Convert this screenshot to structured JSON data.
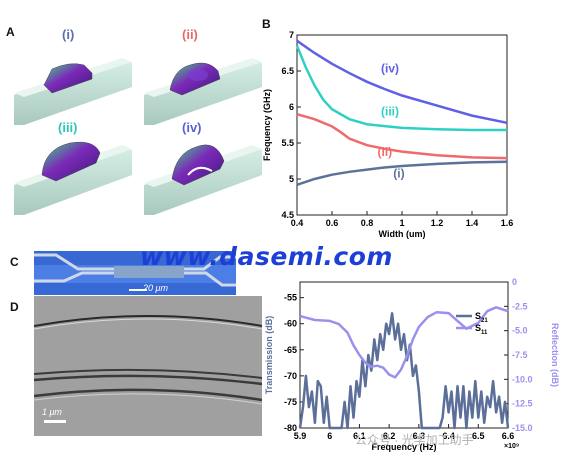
{
  "panels": {
    "A": "A",
    "B": "B",
    "C": "C",
    "D": "D"
  },
  "panel_a": {
    "labels": [
      "(i)",
      "(ii)",
      "(iii)",
      "(iv)"
    ],
    "label_colors": [
      "#5a6fb0",
      "#e86a6a",
      "#2fc7b9",
      "#5a5fd6"
    ]
  },
  "panel_c": {
    "scale_label": "20 μm"
  },
  "panel_d": {
    "scale_label": "1 μm"
  },
  "watermark": "www.dasemi.com",
  "wechat": "公众号 · 光学加工助手",
  "chart_data": [
    {
      "type": "line",
      "xlabel": "Width (um)",
      "ylabel": "Frequency (GHz)",
      "xlim": [
        0.4,
        1.6
      ],
      "ylim": [
        4.5,
        7
      ],
      "xticks": [
        "0.4",
        "0.6",
        "0.8",
        "1",
        "1.2",
        "1.4",
        "1.6"
      ],
      "yticks": [
        "4.5",
        "5",
        "5.5",
        "6",
        "6.5",
        "7"
      ],
      "grid": false,
      "series": [
        {
          "name": "(i)",
          "color": "#5c7299",
          "x": [
            0.4,
            0.5,
            0.6,
            0.7,
            0.8,
            0.9,
            1.0,
            1.2,
            1.4,
            1.6
          ],
          "y": [
            4.92,
            5.0,
            5.06,
            5.1,
            5.13,
            5.16,
            5.18,
            5.21,
            5.23,
            5.24
          ]
        },
        {
          "name": "(ii)",
          "color": "#ef6b6b",
          "x": [
            0.4,
            0.5,
            0.6,
            0.65,
            0.7,
            0.8,
            0.9,
            1.0,
            1.2,
            1.4,
            1.6
          ],
          "y": [
            5.9,
            5.83,
            5.73,
            5.65,
            5.56,
            5.47,
            5.42,
            5.38,
            5.33,
            5.3,
            5.29
          ]
        },
        {
          "name": "(iii)",
          "color": "#2fd0c4",
          "x": [
            0.4,
            0.45,
            0.5,
            0.55,
            0.6,
            0.7,
            0.8,
            1.0,
            1.2,
            1.4,
            1.6
          ],
          "y": [
            6.85,
            6.55,
            6.3,
            6.1,
            5.97,
            5.83,
            5.76,
            5.71,
            5.69,
            5.68,
            5.68
          ]
        },
        {
          "name": "(iv)",
          "color": "#5f60e6",
          "x": [
            0.4,
            0.5,
            0.6,
            0.7,
            0.8,
            0.9,
            1.0,
            1.2,
            1.4,
            1.6
          ],
          "y": [
            6.92,
            6.75,
            6.6,
            6.47,
            6.35,
            6.25,
            6.16,
            6.02,
            5.88,
            5.78
          ]
        }
      ]
    },
    {
      "type": "line",
      "xlabel": "Frequency (Hz)",
      "ylabel": "Transmission (dB)",
      "y2label": "Reflection (dB)",
      "xlim": [
        5.9,
        6.6
      ],
      "x_exponent": "×10⁹",
      "ylim": [
        -80,
        -52
      ],
      "y2lim": [
        -15,
        0
      ],
      "xticks": [
        "5.9",
        "6",
        "6.1",
        "6.2",
        "6.3",
        "6.4",
        "6.5",
        "6.6"
      ],
      "yticks": [
        "-80",
        "-75",
        "-70",
        "-65",
        "-60",
        "-55"
      ],
      "y2ticks": [
        "-15.0",
        "-12.5",
        "-10.0",
        "-7.5",
        "-5.0",
        "-2.5",
        "0"
      ],
      "legend": "right",
      "series": [
        {
          "name": "S21",
          "sub": "21",
          "axis": "left",
          "color": "#5b6f99",
          "x": [
            5.9,
            5.91,
            5.92,
            5.93,
            5.94,
            5.95,
            5.96,
            5.97,
            5.98,
            5.99,
            6.0,
            6.01,
            6.02,
            6.03,
            6.04,
            6.05,
            6.06,
            6.07,
            6.08,
            6.09,
            6.1,
            6.11,
            6.12,
            6.13,
            6.14,
            6.15,
            6.16,
            6.17,
            6.18,
            6.19,
            6.2,
            6.21,
            6.22,
            6.23,
            6.24,
            6.25,
            6.26,
            6.27,
            6.28,
            6.29,
            6.3,
            6.31,
            6.32,
            6.33,
            6.34,
            6.35,
            6.36,
            6.37,
            6.38,
            6.39,
            6.4,
            6.41,
            6.42,
            6.43,
            6.44,
            6.45,
            6.46,
            6.47,
            6.48,
            6.49,
            6.5,
            6.51,
            6.52,
            6.53,
            6.54,
            6.55,
            6.56,
            6.57,
            6.58,
            6.59,
            6.6
          ],
          "y": [
            -80,
            -76,
            -70,
            -76,
            -73,
            -79,
            -71,
            -72,
            -79,
            -74,
            -80,
            -80,
            -80,
            -80,
            -80,
            -75,
            -80,
            -72,
            -78,
            -71,
            -74,
            -67,
            -72,
            -66,
            -69,
            -63,
            -67,
            -62,
            -65,
            -60,
            -62,
            -58,
            -63,
            -60,
            -65,
            -62,
            -67,
            -64,
            -70,
            -68,
            -73,
            -80,
            -80,
            -80,
            -80,
            -80,
            -80,
            -80,
            -78,
            -72,
            -77,
            -73,
            -80,
            -72,
            -78,
            -72,
            -80,
            -73,
            -78,
            -71,
            -78,
            -73,
            -79,
            -74,
            -76,
            -71,
            -77,
            -74,
            -79,
            -75,
            -80
          ]
        },
        {
          "name": "S11",
          "sub": "11",
          "axis": "right",
          "color": "#9a91ef",
          "x": [
            5.9,
            5.95,
            6.0,
            6.03,
            6.06,
            6.08,
            6.1,
            6.12,
            6.14,
            6.16,
            6.18,
            6.2,
            6.22,
            6.24,
            6.26,
            6.28,
            6.3,
            6.33,
            6.36,
            6.4,
            6.43,
            6.46,
            6.5,
            6.53,
            6.56,
            6.6
          ],
          "y": [
            -3.5,
            -3.9,
            -4.0,
            -4.3,
            -5.2,
            -6.5,
            -7.5,
            -8.3,
            -8.7,
            -8.6,
            -8.8,
            -9.5,
            -9.8,
            -9.0,
            -7.6,
            -5.9,
            -4.6,
            -3.6,
            -3.1,
            -3.2,
            -4.0,
            -4.8,
            -4.2,
            -3.0,
            -2.6,
            -3.0
          ]
        }
      ]
    }
  ]
}
